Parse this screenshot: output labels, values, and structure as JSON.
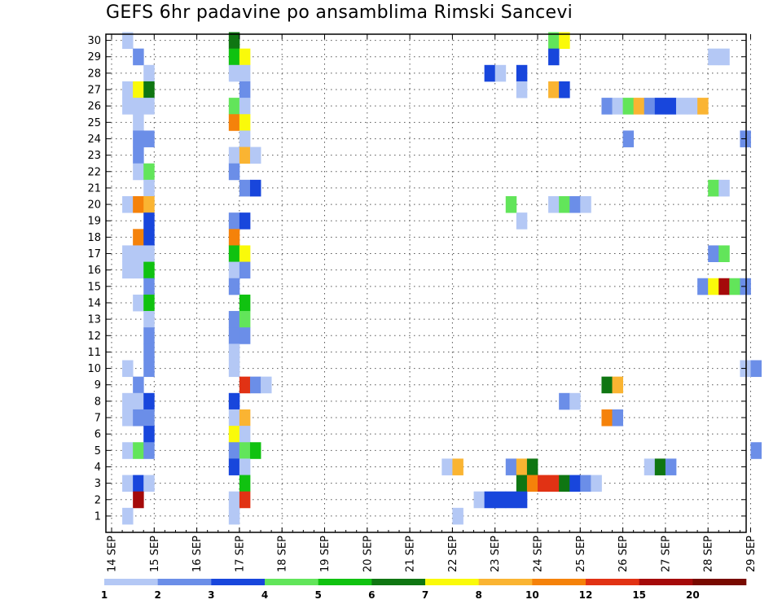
{
  "chart_data": {
    "type": "heatmap",
    "title": "GEFS 6hr padavine po ansamblima Rimski Sancevi",
    "xlabel": "",
    "ylabel": "",
    "y_categories": [
      "1",
      "2",
      "3",
      "4",
      "5",
      "6",
      "7",
      "8",
      "9",
      "10",
      "11",
      "12",
      "13",
      "14",
      "15",
      "16",
      "17",
      "18",
      "19",
      "20",
      "21",
      "22",
      "23",
      "24",
      "25",
      "26",
      "27",
      "28",
      "29",
      "30"
    ],
    "x_ticks": [
      "14 SEP",
      "15 SEP",
      "16 SEP",
      "17 SEP",
      "18 SEP",
      "19 SEP",
      "20 SEP",
      "21 SEP",
      "22 SEP",
      "23 SEP",
      "24 SEP",
      "25 SEP",
      "26 SEP",
      "27 SEP",
      "28 SEP",
      "29 SEP"
    ],
    "x_start": "14 SEP 00Z",
    "time_step_hours": 6,
    "color_levels": [
      1,
      2,
      3,
      4,
      5,
      6,
      7,
      8,
      10,
      12,
      15,
      20
    ],
    "level_labels": [
      "1",
      "2",
      "3",
      "4",
      "5",
      "6",
      "7",
      "8",
      "10",
      "12",
      "15",
      "20"
    ],
    "colors": [
      "#b4c8f5",
      "#6b8ee8",
      "#1846dc",
      "#62e55a",
      "#10c210",
      "#0f7612",
      "#fafa0a",
      "#fab432",
      "#f5820a",
      "#e13214",
      "#a50a0a",
      "#780a00"
    ],
    "cells": [
      [
        30,
        1,
        1
      ],
      [
        30,
        11,
        6
      ],
      [
        30,
        41,
        4
      ],
      [
        30,
        42,
        7
      ],
      [
        29,
        2,
        2
      ],
      [
        29,
        11,
        5
      ],
      [
        29,
        12,
        7
      ],
      [
        29,
        41,
        3
      ],
      [
        29,
        56,
        1
      ],
      [
        29,
        57,
        1
      ],
      [
        28,
        3,
        1
      ],
      [
        28,
        11,
        1
      ],
      [
        28,
        12,
        1
      ],
      [
        28,
        35,
        3
      ],
      [
        28,
        36,
        1
      ],
      [
        28,
        38,
        3
      ],
      [
        27,
        1,
        1
      ],
      [
        27,
        2,
        7
      ],
      [
        27,
        3,
        6
      ],
      [
        27,
        12,
        2
      ],
      [
        27,
        38,
        1
      ],
      [
        27,
        41,
        8
      ],
      [
        27,
        42,
        3
      ],
      [
        26,
        1,
        1
      ],
      [
        26,
        2,
        1
      ],
      [
        26,
        3,
        1
      ],
      [
        26,
        11,
        4
      ],
      [
        26,
        12,
        1
      ],
      [
        26,
        46,
        2
      ],
      [
        26,
        47,
        1
      ],
      [
        26,
        48,
        4
      ],
      [
        26,
        49,
        8
      ],
      [
        26,
        50,
        2
      ],
      [
        26,
        51,
        3
      ],
      [
        26,
        52,
        3
      ],
      [
        26,
        53,
        1
      ],
      [
        26,
        54,
        1
      ],
      [
        26,
        55,
        8
      ],
      [
        25,
        2,
        1
      ],
      [
        25,
        11,
        9
      ],
      [
        25,
        12,
        7
      ],
      [
        24,
        2,
        2
      ],
      [
        24,
        3,
        2
      ],
      [
        24,
        12,
        1
      ],
      [
        24,
        48,
        2
      ],
      [
        24,
        59,
        2
      ],
      [
        23,
        2,
        2
      ],
      [
        23,
        11,
        1
      ],
      [
        23,
        12,
        8
      ],
      [
        23,
        13,
        1
      ],
      [
        22,
        2,
        1
      ],
      [
        22,
        3,
        4
      ],
      [
        22,
        11,
        2
      ],
      [
        21,
        3,
        1
      ],
      [
        21,
        12,
        2
      ],
      [
        21,
        13,
        3
      ],
      [
        21,
        56,
        4
      ],
      [
        21,
        57,
        1
      ],
      [
        20,
        1,
        1
      ],
      [
        20,
        2,
        9
      ],
      [
        20,
        3,
        8
      ],
      [
        20,
        37,
        4
      ],
      [
        20,
        41,
        1
      ],
      [
        20,
        42,
        4
      ],
      [
        20,
        43,
        2
      ],
      [
        20,
        44,
        1
      ],
      [
        19,
        3,
        3
      ],
      [
        19,
        11,
        2
      ],
      [
        19,
        12,
        3
      ],
      [
        19,
        38,
        1
      ],
      [
        18,
        2,
        9
      ],
      [
        18,
        3,
        3
      ],
      [
        18,
        11,
        9
      ],
      [
        17,
        1,
        1
      ],
      [
        17,
        2,
        1
      ],
      [
        17,
        3,
        1
      ],
      [
        17,
        11,
        5
      ],
      [
        17,
        12,
        7
      ],
      [
        17,
        56,
        2
      ],
      [
        17,
        57,
        4
      ],
      [
        16,
        1,
        1
      ],
      [
        16,
        2,
        1
      ],
      [
        16,
        3,
        5
      ],
      [
        16,
        11,
        1
      ],
      [
        16,
        12,
        2
      ],
      [
        15,
        3,
        2
      ],
      [
        15,
        11,
        2
      ],
      [
        15,
        55,
        2
      ],
      [
        15,
        56,
        7
      ],
      [
        15,
        57,
        11
      ],
      [
        15,
        58,
        4
      ],
      [
        15,
        59,
        2
      ],
      [
        14,
        2,
        1
      ],
      [
        14,
        3,
        5
      ],
      [
        14,
        12,
        5
      ],
      [
        13,
        3,
        1
      ],
      [
        13,
        11,
        2
      ],
      [
        13,
        12,
        4
      ],
      [
        12,
        3,
        2
      ],
      [
        12,
        11,
        2
      ],
      [
        12,
        12,
        2
      ],
      [
        11,
        3,
        2
      ],
      [
        11,
        11,
        1
      ],
      [
        10,
        1,
        1
      ],
      [
        10,
        3,
        2
      ],
      [
        10,
        11,
        1
      ],
      [
        10,
        59,
        1
      ],
      [
        10,
        60,
        2
      ],
      [
        9,
        2,
        2
      ],
      [
        9,
        12,
        10
      ],
      [
        9,
        13,
        2
      ],
      [
        9,
        14,
        1
      ],
      [
        9,
        46,
        6
      ],
      [
        9,
        47,
        8
      ],
      [
        8,
        1,
        1
      ],
      [
        8,
        2,
        1
      ],
      [
        8,
        3,
        3
      ],
      [
        8,
        11,
        3
      ],
      [
        8,
        42,
        2
      ],
      [
        8,
        43,
        1
      ],
      [
        7,
        1,
        1
      ],
      [
        7,
        2,
        2
      ],
      [
        7,
        3,
        2
      ],
      [
        7,
        11,
        1
      ],
      [
        7,
        12,
        8
      ],
      [
        7,
        46,
        9
      ],
      [
        7,
        47,
        2
      ],
      [
        6,
        3,
        3
      ],
      [
        6,
        11,
        7
      ],
      [
        6,
        12,
        1
      ],
      [
        5,
        1,
        1
      ],
      [
        5,
        2,
        4
      ],
      [
        5,
        3,
        2
      ],
      [
        5,
        11,
        2
      ],
      [
        5,
        12,
        4
      ],
      [
        5,
        13,
        5
      ],
      [
        5,
        60,
        2
      ],
      [
        4,
        11,
        3
      ],
      [
        4,
        12,
        1
      ],
      [
        4,
        31,
        1
      ],
      [
        4,
        32,
        8
      ],
      [
        4,
        37,
        2
      ],
      [
        4,
        38,
        8
      ],
      [
        4,
        39,
        6
      ],
      [
        4,
        50,
        1
      ],
      [
        4,
        51,
        6
      ],
      [
        4,
        52,
        2
      ],
      [
        3,
        1,
        1
      ],
      [
        3,
        2,
        3
      ],
      [
        3,
        3,
        1
      ],
      [
        3,
        12,
        5
      ],
      [
        3,
        38,
        6
      ],
      [
        3,
        39,
        9
      ],
      [
        3,
        40,
        10
      ],
      [
        3,
        41,
        10
      ],
      [
        3,
        42,
        6
      ],
      [
        3,
        43,
        3
      ],
      [
        3,
        44,
        2
      ],
      [
        3,
        45,
        1
      ],
      [
        2,
        2,
        11
      ],
      [
        2,
        11,
        1
      ],
      [
        2,
        12,
        10
      ],
      [
        2,
        34,
        1
      ],
      [
        2,
        35,
        3
      ],
      [
        2,
        36,
        3
      ],
      [
        2,
        37,
        3
      ],
      [
        2,
        38,
        3
      ],
      [
        1,
        1,
        1
      ],
      [
        1,
        11,
        1
      ],
      [
        1,
        32,
        1
      ]
    ]
  }
}
